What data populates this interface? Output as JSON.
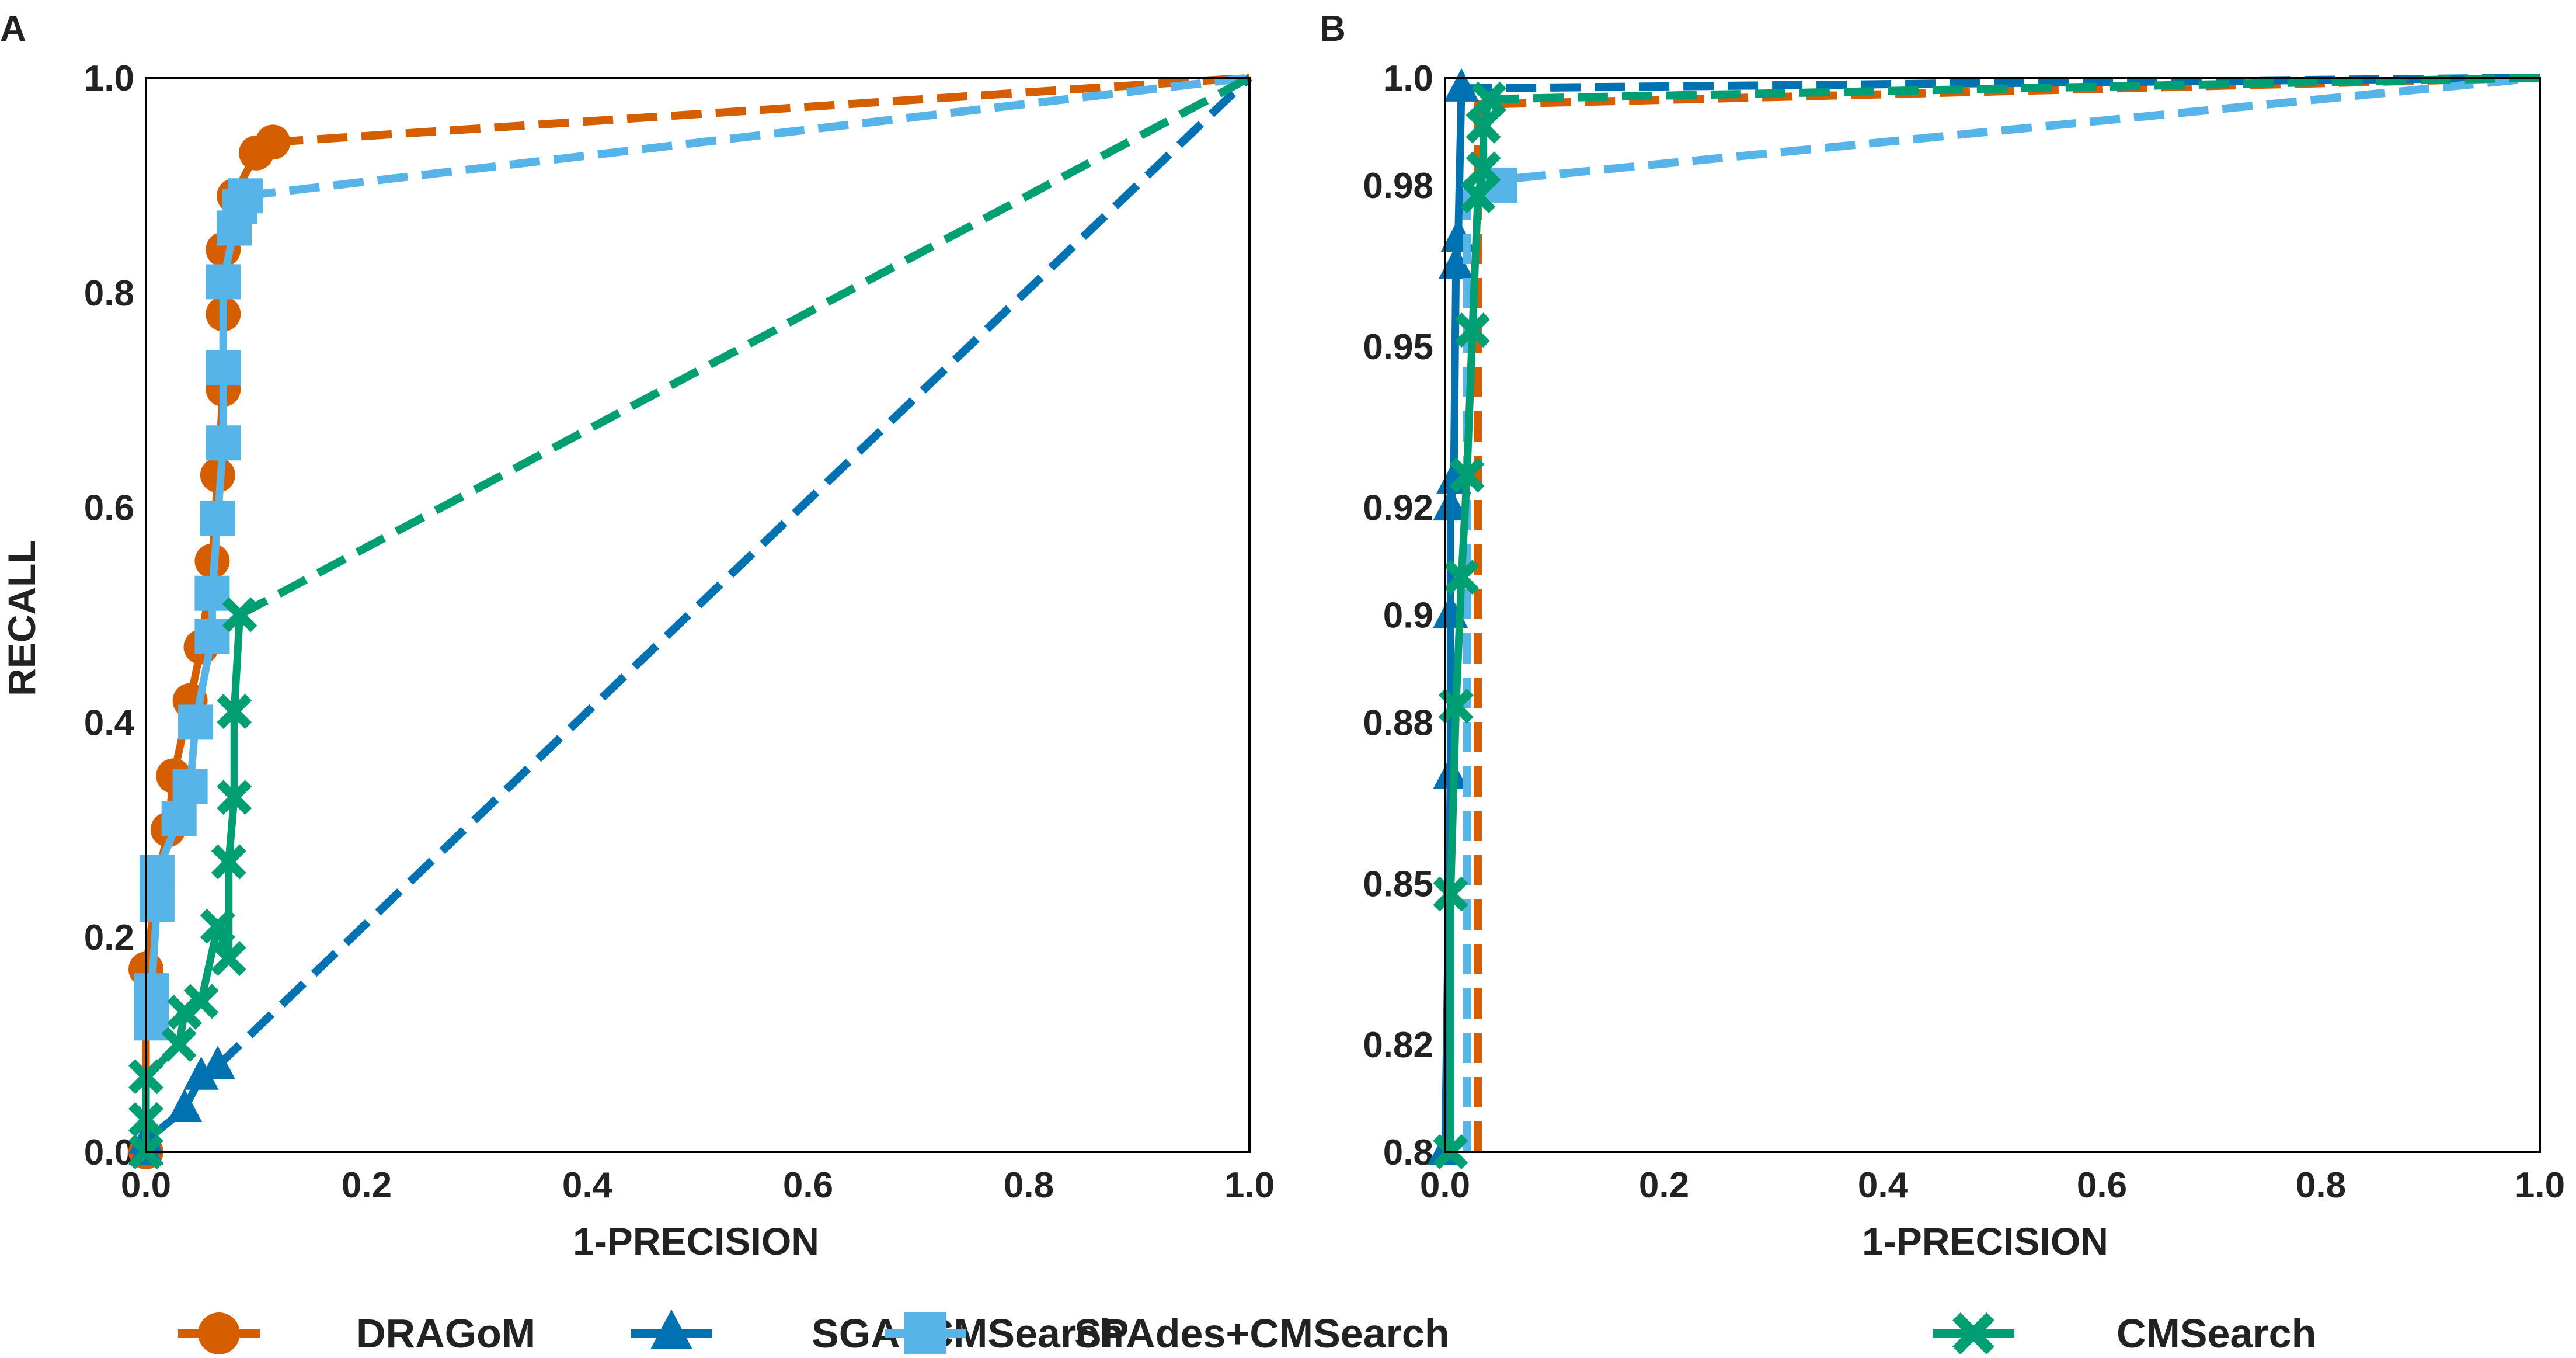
{
  "legend": {
    "position": "bottom-center",
    "entries": [
      {
        "name": "DRAGoM",
        "color": "#d55e00",
        "marker": "circle"
      },
      {
        "name": "SGA+CMSearch",
        "color": "#0072b2",
        "marker": "triangle"
      },
      {
        "name": "SPAdes+CMSearch",
        "color": "#56b4e9",
        "marker": "square"
      },
      {
        "name": "CMSearch",
        "color": "#009e73",
        "marker": "x"
      }
    ]
  },
  "chart_data": [
    {
      "panel": "A",
      "type": "line",
      "title": "",
      "xlabel": "1-PRECISION",
      "ylabel": "RECALL",
      "xlim": [
        0,
        1
      ],
      "ylim": [
        0,
        1
      ],
      "xticks": [
        "0.0",
        "0.2",
        "0.4",
        "0.6",
        "0.8",
        "1.0"
      ],
      "yticks": [
        "0.0",
        "0.2",
        "0.4",
        "0.6",
        "0.8",
        "1.0"
      ],
      "grid": false,
      "series": [
        {
          "name": "DRAGoM",
          "color": "#d55e00",
          "marker": "circle",
          "solid": [
            [
              0.0,
              0.0
            ],
            [
              0.0,
              0.17
            ],
            [
              0.01,
              0.25
            ],
            [
              0.02,
              0.3
            ],
            [
              0.025,
              0.35
            ],
            [
              0.04,
              0.42
            ],
            [
              0.05,
              0.47
            ],
            [
              0.06,
              0.55
            ],
            [
              0.065,
              0.63
            ],
            [
              0.07,
              0.71
            ],
            [
              0.07,
              0.78
            ],
            [
              0.07,
              0.84
            ],
            [
              0.08,
              0.89
            ],
            [
              0.1,
              0.93
            ],
            [
              0.115,
              0.94
            ]
          ],
          "dashed": [
            [
              0.115,
              0.94
            ],
            [
              1.0,
              1.0
            ]
          ]
        },
        {
          "name": "SGA+CMSearch",
          "color": "#0072b2",
          "marker": "triangle",
          "solid": [
            [
              0.0,
              0.0
            ],
            [
              0.0,
              0.01
            ],
            [
              0.035,
              0.04
            ],
            [
              0.05,
              0.07
            ],
            [
              0.065,
              0.08
            ]
          ],
          "dashed": [
            [
              0.065,
              0.08
            ],
            [
              1.0,
              1.0
            ]
          ]
        },
        {
          "name": "SPAdes+CMSearch",
          "color": "#56b4e9",
          "marker": "square",
          "solid": [
            [
              0.005,
              0.12
            ],
            [
              0.005,
              0.15
            ],
            [
              0.01,
              0.23
            ],
            [
              0.01,
              0.26
            ],
            [
              0.03,
              0.31
            ],
            [
              0.04,
              0.34
            ],
            [
              0.045,
              0.4
            ],
            [
              0.06,
              0.48
            ],
            [
              0.06,
              0.52
            ],
            [
              0.065,
              0.59
            ],
            [
              0.07,
              0.66
            ],
            [
              0.07,
              0.73
            ],
            [
              0.07,
              0.81
            ],
            [
              0.08,
              0.86
            ],
            [
              0.085,
              0.88
            ],
            [
              0.09,
              0.89
            ]
          ],
          "dashed": [
            [
              0.09,
              0.89
            ],
            [
              1.0,
              1.0
            ]
          ]
        },
        {
          "name": "CMSearch",
          "color": "#009e73",
          "marker": "x",
          "solid": [
            [
              0.0,
              0.0
            ],
            [
              0.0,
              0.03
            ],
            [
              0.0,
              0.07
            ],
            [
              0.03,
              0.1
            ],
            [
              0.035,
              0.13
            ],
            [
              0.05,
              0.14
            ],
            [
              0.065,
              0.21
            ],
            [
              0.075,
              0.18
            ],
            [
              0.075,
              0.27
            ],
            [
              0.08,
              0.33
            ],
            [
              0.08,
              0.41
            ],
            [
              0.085,
              0.5
            ]
          ],
          "dashed": [
            [
              0.085,
              0.5
            ],
            [
              1.0,
              1.0
            ]
          ]
        }
      ]
    },
    {
      "panel": "B",
      "type": "line",
      "title": "",
      "xlabel": "1-PRECISION",
      "ylabel": "",
      "xlim": [
        0,
        1
      ],
      "ylim": [
        0.8,
        1
      ],
      "xticks": [
        "0.0",
        "0.2",
        "0.4",
        "0.6",
        "0.8",
        "1.0"
      ],
      "yticks": [
        "0.8",
        "0.82",
        "0.85",
        "0.88",
        "0.9",
        "0.92",
        "0.95",
        "0.98",
        "1.0"
      ],
      "grid": false,
      "series": [
        {
          "name": "DRAGoM",
          "color": "#d55e00",
          "marker": "none",
          "solid": [],
          "dashed": [
            [
              0.03,
              0.8
            ],
            [
              0.03,
              0.995
            ],
            [
              1.0,
              1.0
            ]
          ]
        },
        {
          "name": "SGA+CMSearch",
          "color": "#0072b2",
          "marker": "triangle",
          "solid": [
            [
              0.0,
              0.8
            ],
            [
              0.005,
              0.87
            ],
            [
              0.005,
              0.9
            ],
            [
              0.005,
              0.92
            ],
            [
              0.008,
              0.925
            ],
            [
              0.01,
              0.965
            ],
            [
              0.012,
              0.97
            ],
            [
              0.015,
              0.998
            ]
          ],
          "dashed": [
            [
              0.015,
              0.998
            ],
            [
              1.0,
              1.0
            ]
          ]
        },
        {
          "name": "SPAdes+CMSearch",
          "color": "#56b4e9",
          "marker": "square",
          "solid": [
            [
              0.05,
              0.98
            ]
          ],
          "dashed": [
            [
              0.02,
              0.8
            ],
            [
              0.02,
              0.981
            ],
            [
              0.05,
              0.981
            ],
            [
              1.0,
              1.0
            ]
          ]
        },
        {
          "name": "CMSearch",
          "color": "#009e73",
          "marker": "x",
          "solid": [
            [
              0.005,
              0.8
            ],
            [
              0.005,
              0.848
            ],
            [
              0.01,
              0.883
            ],
            [
              0.015,
              0.907
            ],
            [
              0.02,
              0.926
            ],
            [
              0.025,
              0.953
            ],
            [
              0.03,
              0.978
            ],
            [
              0.035,
              0.983
            ],
            [
              0.035,
              0.991
            ],
            [
              0.04,
              0.996
            ]
          ],
          "dashed": [
            [
              0.04,
              0.996
            ],
            [
              1.0,
              1.0
            ]
          ]
        }
      ]
    }
  ]
}
